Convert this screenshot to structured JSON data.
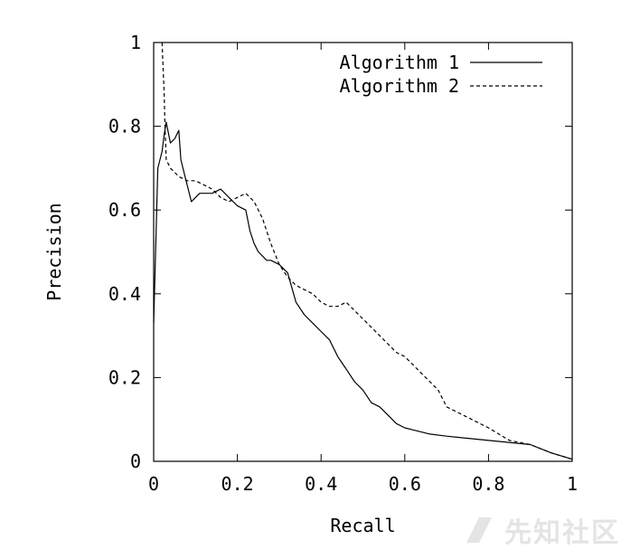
{
  "chart_data": {
    "type": "line",
    "title": "",
    "xlabel": "Recall",
    "ylabel": "Precision",
    "xlim": [
      0,
      1
    ],
    "ylim": [
      0,
      1
    ],
    "grid": false,
    "legend_position": "top-right",
    "xticks": [
      "0",
      "0.2",
      "0.4",
      "0.6",
      "0.8",
      "1"
    ],
    "yticks": [
      "0",
      "0.2",
      "0.4",
      "0.6",
      "0.8",
      "1"
    ],
    "series": [
      {
        "name": "Algorithm 1",
        "style": "solid",
        "color": "#000000",
        "x": [
          0.0,
          0.01,
          0.02,
          0.025,
          0.03,
          0.04,
          0.05,
          0.06,
          0.065,
          0.075,
          0.09,
          0.1,
          0.11,
          0.12,
          0.14,
          0.16,
          0.18,
          0.2,
          0.22,
          0.23,
          0.24,
          0.25,
          0.26,
          0.27,
          0.28,
          0.3,
          0.32,
          0.34,
          0.36,
          0.38,
          0.4,
          0.42,
          0.44,
          0.46,
          0.48,
          0.5,
          0.52,
          0.54,
          0.56,
          0.58,
          0.6,
          0.62,
          0.66,
          0.7,
          0.8,
          0.9,
          0.95,
          1.0
        ],
        "y": [
          0.33,
          0.7,
          0.74,
          0.78,
          0.81,
          0.76,
          0.77,
          0.79,
          0.72,
          0.68,
          0.62,
          0.63,
          0.64,
          0.64,
          0.64,
          0.65,
          0.63,
          0.61,
          0.6,
          0.55,
          0.52,
          0.5,
          0.49,
          0.48,
          0.48,
          0.47,
          0.45,
          0.38,
          0.35,
          0.33,
          0.31,
          0.29,
          0.25,
          0.22,
          0.19,
          0.17,
          0.14,
          0.13,
          0.11,
          0.09,
          0.08,
          0.075,
          0.065,
          0.06,
          0.05,
          0.04,
          0.02,
          0.005
        ]
      },
      {
        "name": "Algorithm 2",
        "style": "dashed",
        "color": "#000000",
        "x": [
          0.02,
          0.022,
          0.025,
          0.027,
          0.03,
          0.04,
          0.05,
          0.06,
          0.08,
          0.1,
          0.12,
          0.14,
          0.16,
          0.18,
          0.2,
          0.22,
          0.24,
          0.26,
          0.28,
          0.3,
          0.32,
          0.34,
          0.36,
          0.38,
          0.4,
          0.42,
          0.44,
          0.46,
          0.48,
          0.5,
          0.52,
          0.54,
          0.56,
          0.58,
          0.6,
          0.62,
          0.64,
          0.66,
          0.68,
          0.7,
          0.72,
          0.74,
          0.76,
          0.8,
          0.85,
          0.9,
          0.95,
          1.0
        ],
        "y": [
          1.0,
          0.95,
          0.88,
          0.8,
          0.72,
          0.7,
          0.69,
          0.68,
          0.67,
          0.67,
          0.66,
          0.65,
          0.63,
          0.62,
          0.63,
          0.64,
          0.62,
          0.58,
          0.52,
          0.47,
          0.44,
          0.42,
          0.41,
          0.4,
          0.38,
          0.37,
          0.37,
          0.38,
          0.36,
          0.34,
          0.32,
          0.3,
          0.28,
          0.26,
          0.25,
          0.23,
          0.21,
          0.19,
          0.17,
          0.13,
          0.12,
          0.11,
          0.1,
          0.08,
          0.05,
          0.04,
          0.02,
          0.005
        ]
      }
    ]
  },
  "watermark": {
    "text": "先知社区"
  }
}
